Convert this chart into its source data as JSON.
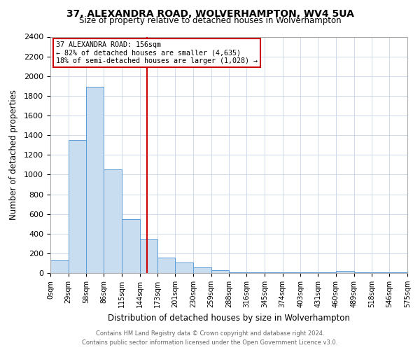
{
  "title": "37, ALEXANDRA ROAD, WOLVERHAMPTON, WV4 5UA",
  "subtitle": "Size of property relative to detached houses in Wolverhampton",
  "xlabel": "Distribution of detached houses by size in Wolverhampton",
  "ylabel": "Number of detached properties",
  "bin_labels": [
    "0sqm",
    "29sqm",
    "58sqm",
    "86sqm",
    "115sqm",
    "144sqm",
    "173sqm",
    "201sqm",
    "230sqm",
    "259sqm",
    "288sqm",
    "316sqm",
    "345sqm",
    "374sqm",
    "403sqm",
    "431sqm",
    "460sqm",
    "489sqm",
    "518sqm",
    "546sqm",
    "575sqm"
  ],
  "bar_heights": [
    125,
    1350,
    1890,
    1050,
    550,
    340,
    155,
    105,
    60,
    30,
    5,
    5,
    5,
    5,
    5,
    5,
    20,
    5,
    5,
    5
  ],
  "bin_edges": [
    0,
    29,
    58,
    86,
    115,
    144,
    173,
    201,
    230,
    259,
    288,
    316,
    345,
    374,
    403,
    431,
    460,
    489,
    518,
    546,
    575
  ],
  "bar_color": "#c9ddf0",
  "bar_edge_color": "#5b9bd5",
  "property_line_x": 156,
  "property_line_color": "#cc0000",
  "annotation_line1": "37 ALEXANDRA ROAD: 156sqm",
  "annotation_line2": "← 82% of detached houses are smaller (4,635)",
  "annotation_line3": "18% of semi-detached houses are larger (1,028) →",
  "annotation_box_color": "white",
  "annotation_box_edge": "#cc0000",
  "ylim": [
    0,
    2400
  ],
  "yticks": [
    0,
    200,
    400,
    600,
    800,
    1000,
    1200,
    1400,
    1600,
    1800,
    2000,
    2200,
    2400
  ],
  "footer_line1": "Contains HM Land Registry data © Crown copyright and database right 2024.",
  "footer_line2": "Contains public sector information licensed under the Open Government Licence v3.0.",
  "background_color": "#ffffff",
  "grid_color": "#c8d4e8"
}
